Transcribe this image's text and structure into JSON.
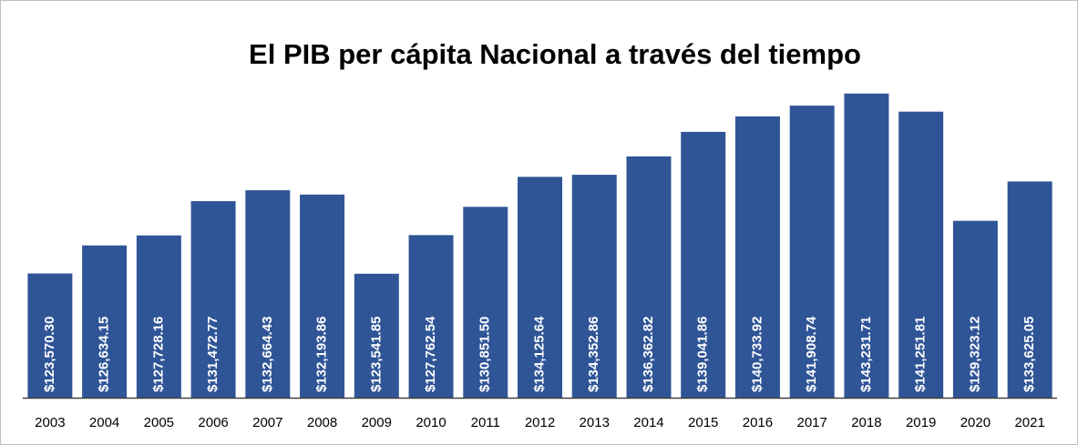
{
  "chart_data": {
    "type": "bar",
    "title": "El PIB per cápita Nacional a través del tiempo",
    "categories": [
      "2003",
      "2004",
      "2005",
      "2006",
      "2007",
      "2008",
      "2009",
      "2010",
      "2011",
      "2012",
      "2013",
      "2014",
      "2015",
      "2016",
      "2017",
      "2018",
      "2019",
      "2020",
      "2021"
    ],
    "values": [
      123570.3,
      126634.15,
      127728.16,
      131472.77,
      132664.43,
      132193.86,
      123541.85,
      127762.54,
      130851.5,
      134125.64,
      134352.86,
      136362.82,
      139041.86,
      140733.92,
      141908.74,
      143231.71,
      141251.81,
      129323.12,
      133625.05
    ],
    "value_labels": [
      "$123,570.30",
      "$126,634.15",
      "$127,728.16",
      "$131,472.77",
      "$132,664.43",
      "$132,193.86",
      "$123,541.85",
      "$127,762.54",
      "$130,851.50",
      "$134,125.64",
      "$134,352.86",
      "$136,362.82",
      "$139,041.86",
      "$140,733.92",
      "$141,908.74",
      "$143,231.71",
      "$141,251.81",
      "$129,323.12",
      "$133,625.05"
    ],
    "color": "#2f5597",
    "ylim": [
      110000,
      145000
    ]
  }
}
